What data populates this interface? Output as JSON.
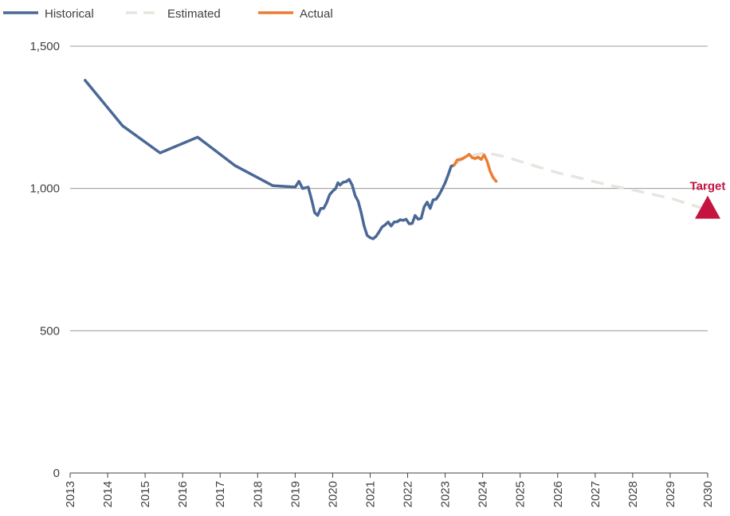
{
  "chart_data": {
    "type": "line",
    "title": "",
    "xlabel": "",
    "ylabel": "",
    "ylim": [
      0,
      1500
    ],
    "xlim": [
      2013,
      2030
    ],
    "y_ticks": [
      0,
      500,
      1000,
      1500
    ],
    "y_tick_labels": [
      "0",
      "500",
      "1,000",
      "1,500"
    ],
    "x_ticks": [
      2013,
      2014,
      2015,
      2016,
      2017,
      2018,
      2019,
      2020,
      2021,
      2022,
      2023,
      2024,
      2025,
      2026,
      2027,
      2028,
      2029,
      2030
    ],
    "x_tick_labels": [
      "2013",
      "2014",
      "2015",
      "2016",
      "2017",
      "2018",
      "2019",
      "2020",
      "2021",
      "2022",
      "2023",
      "2024",
      "2025",
      "2026",
      "2027",
      "2028",
      "2029",
      "2030"
    ],
    "grid": "horizontal",
    "legend_position": "top-left",
    "series": [
      {
        "name": "Historical",
        "color": "#4a6896",
        "style": "solid",
        "points": [
          [
            2013.4,
            1380
          ],
          [
            2014.4,
            1220
          ],
          [
            2015.4,
            1125
          ],
          [
            2016.4,
            1180
          ],
          [
            2017.4,
            1080
          ],
          [
            2018.4,
            1010
          ],
          [
            2019.0,
            1005
          ],
          [
            2019.1,
            1025
          ],
          [
            2019.2,
            1000
          ],
          [
            2019.35,
            1005
          ],
          [
            2019.45,
            955
          ],
          [
            2019.52,
            915
          ],
          [
            2019.6,
            905
          ],
          [
            2019.68,
            930
          ],
          [
            2019.76,
            930
          ],
          [
            2019.84,
            950
          ],
          [
            2019.92,
            978
          ],
          [
            2020.0,
            990
          ],
          [
            2020.08,
            1000
          ],
          [
            2020.14,
            1020
          ],
          [
            2020.2,
            1012
          ],
          [
            2020.28,
            1022
          ],
          [
            2020.36,
            1024
          ],
          [
            2020.44,
            1032
          ],
          [
            2020.52,
            1012
          ],
          [
            2020.6,
            975
          ],
          [
            2020.68,
            955
          ],
          [
            2020.76,
            915
          ],
          [
            2020.84,
            868
          ],
          [
            2020.92,
            835
          ],
          [
            2021.0,
            827
          ],
          [
            2021.08,
            823
          ],
          [
            2021.16,
            832
          ],
          [
            2021.24,
            848
          ],
          [
            2021.32,
            865
          ],
          [
            2021.4,
            872
          ],
          [
            2021.48,
            882
          ],
          [
            2021.56,
            868
          ],
          [
            2021.64,
            882
          ],
          [
            2021.72,
            883
          ],
          [
            2021.8,
            890
          ],
          [
            2021.88,
            888
          ],
          [
            2021.96,
            892
          ],
          [
            2022.04,
            876
          ],
          [
            2022.12,
            877
          ],
          [
            2022.2,
            905
          ],
          [
            2022.28,
            892
          ],
          [
            2022.36,
            895
          ],
          [
            2022.44,
            935
          ],
          [
            2022.52,
            952
          ],
          [
            2022.6,
            930
          ],
          [
            2022.68,
            960
          ],
          [
            2022.76,
            962
          ],
          [
            2022.84,
            978
          ],
          [
            2022.92,
            998
          ],
          [
            2023.0,
            1020
          ],
          [
            2023.08,
            1048
          ],
          [
            2023.16,
            1078
          ],
          [
            2023.24,
            1082
          ]
        ]
      },
      {
        "name": "Estimated",
        "color": "#e8e5df",
        "style": "dashed",
        "points": [
          [
            2023.2,
            1080
          ],
          [
            2023.5,
            1105
          ],
          [
            2023.8,
            1118
          ],
          [
            2024.0,
            1124
          ],
          [
            2024.3,
            1120
          ],
          [
            2024.7,
            1108
          ],
          [
            2025.0,
            1095
          ],
          [
            2025.5,
            1075
          ],
          [
            2026.0,
            1055
          ],
          [
            2026.5,
            1040
          ],
          [
            2027.0,
            1023
          ],
          [
            2027.5,
            1008
          ],
          [
            2028.0,
            995
          ],
          [
            2028.5,
            980
          ],
          [
            2029.0,
            966
          ],
          [
            2029.5,
            945
          ],
          [
            2030.0,
            925
          ]
        ]
      },
      {
        "name": "Actual",
        "color": "#ec7d31",
        "style": "solid",
        "points": [
          [
            2023.24,
            1082
          ],
          [
            2023.32,
            1100
          ],
          [
            2023.4,
            1102
          ],
          [
            2023.48,
            1106
          ],
          [
            2023.56,
            1112
          ],
          [
            2023.64,
            1120
          ],
          [
            2023.72,
            1108
          ],
          [
            2023.8,
            1105
          ],
          [
            2023.88,
            1110
          ],
          [
            2023.96,
            1102
          ],
          [
            2024.04,
            1118
          ],
          [
            2024.12,
            1095
          ],
          [
            2024.2,
            1060
          ],
          [
            2024.28,
            1038
          ],
          [
            2024.36,
            1025
          ]
        ]
      }
    ],
    "target": {
      "label": "Target",
      "x": 2030.0,
      "y": 930,
      "color": "#c4133f"
    }
  }
}
